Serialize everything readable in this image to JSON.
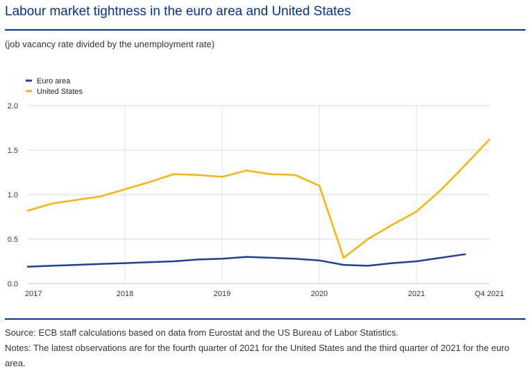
{
  "title": "Labour market tightness in the euro area and United States",
  "subtitle": "(job vacancy rate divided by the unemployment rate)",
  "source": "Source: ECB staff calculations based on data from Eurostat and the US Bureau of Labor Statistics.",
  "notes": "Notes: The latest observations are for the fourth quarter of 2021 for the United States and the third quarter of 2021 for the euro area.",
  "colors": {
    "euro_area": "#1f3f9e",
    "united_states": "#ffb400",
    "title": "#003299",
    "grid": "#d9d9d9"
  },
  "chart_data": {
    "type": "line",
    "title": "",
    "xlabel": "",
    "ylabel": "",
    "ylim": [
      0,
      2.0
    ],
    "yticks": [
      "0.0",
      "0.5",
      "1.0",
      "1.5",
      "2.0"
    ],
    "ytick_values": [
      0,
      0.5,
      1.0,
      1.5,
      2.0
    ],
    "x": [
      "2017 Q1",
      "2017 Q2",
      "2017 Q3",
      "2017 Q4",
      "2018 Q1",
      "2018 Q2",
      "2018 Q3",
      "2018 Q4",
      "2019 Q1",
      "2019 Q2",
      "2019 Q3",
      "2019 Q4",
      "2020 Q1",
      "2020 Q2",
      "2020 Q3",
      "2020 Q4",
      "2021 Q1",
      "2021 Q2",
      "2021 Q3",
      "2021 Q4"
    ],
    "xticks": [
      {
        "label": "2017",
        "index": 0
      },
      {
        "label": "2018",
        "index": 4
      },
      {
        "label": "2019",
        "index": 8
      },
      {
        "label": "2020",
        "index": 12
      },
      {
        "label": "2021",
        "index": 16
      },
      {
        "label": "Q4 2021",
        "index": 19
      }
    ],
    "legend_position": "top-left",
    "series": [
      {
        "name": "Euro area",
        "color": "#1f3f9e",
        "values": [
          0.19,
          0.2,
          0.21,
          0.22,
          0.23,
          0.24,
          0.25,
          0.27,
          0.28,
          0.3,
          0.29,
          0.28,
          0.26,
          0.21,
          0.2,
          0.23,
          0.25,
          0.29,
          0.33,
          null
        ]
      },
      {
        "name": "United States",
        "color": "#ffb400",
        "values": [
          0.82,
          0.9,
          0.94,
          0.98,
          1.06,
          1.14,
          1.23,
          1.22,
          1.2,
          1.27,
          1.23,
          1.22,
          1.1,
          0.29,
          0.5,
          0.66,
          0.81,
          1.05,
          1.33,
          1.62
        ]
      }
    ]
  }
}
